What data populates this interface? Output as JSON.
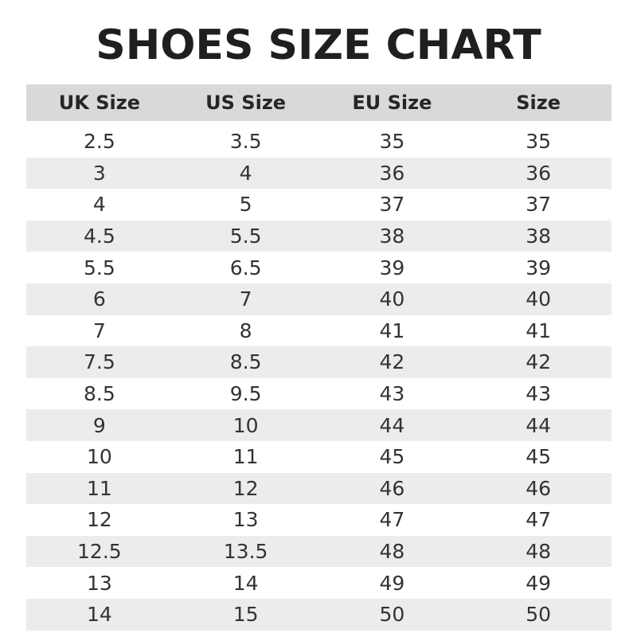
{
  "title": "SHOES SIZE CHART",
  "table": {
    "headers": [
      "UK Size",
      "US Size",
      "EU Size",
      "Size"
    ],
    "rows": [
      [
        "2.5",
        "3.5",
        "35",
        "35"
      ],
      [
        "3",
        "4",
        "36",
        "36"
      ],
      [
        "4",
        "5",
        "37",
        "37"
      ],
      [
        "4.5",
        "5.5",
        "38",
        "38"
      ],
      [
        "5.5",
        "6.5",
        "39",
        "39"
      ],
      [
        "6",
        "7",
        "40",
        "40"
      ],
      [
        "7",
        "8",
        "41",
        "41"
      ],
      [
        "7.5",
        "8.5",
        "42",
        "42"
      ],
      [
        "8.5",
        "9.5",
        "43",
        "43"
      ],
      [
        "9",
        "10",
        "44",
        "44"
      ],
      [
        "10",
        "11",
        "45",
        "45"
      ],
      [
        "11",
        "12",
        "46",
        "46"
      ],
      [
        "12",
        "13",
        "47",
        "47"
      ],
      [
        "12.5",
        "13.5",
        "48",
        "48"
      ],
      [
        "13",
        "14",
        "49",
        "49"
      ],
      [
        "14",
        "15",
        "50",
        "50"
      ]
    ]
  },
  "colors": {
    "header_bg": "#d9d9d9",
    "stripe_bg": "#ececec",
    "text": "#333333"
  }
}
